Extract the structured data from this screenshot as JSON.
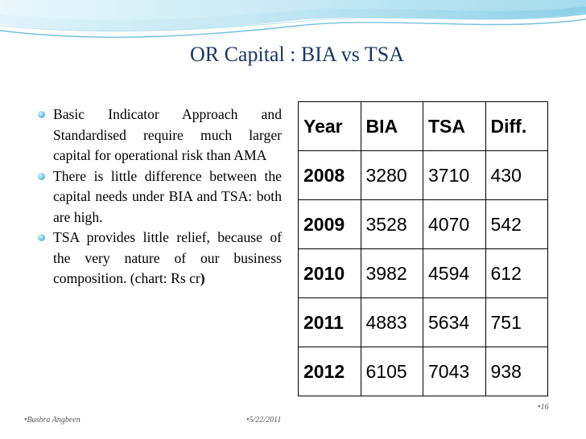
{
  "slide": {
    "title": "OR Capital : BIA vs TSA",
    "bullets": [
      {
        "text": "Basic Indicator Approach and Standardised require much larger capital for operational risk than AMA",
        "tail": ""
      },
      {
        "text": "There is little difference between the capital needs under  BIA and TSA: both are high.",
        "tail": ""
      },
      {
        "text": "TSA provides little relief, because of the very nature of our business composition. (chart: Rs cr",
        "tail": ")"
      }
    ]
  },
  "table": {
    "headers": [
      "Year",
      "BIA",
      "TSA",
      "Diff."
    ],
    "rows": [
      [
        "2008",
        "3280",
        "3710",
        "430"
      ],
      [
        "2009",
        "3528",
        "4070",
        "542"
      ],
      [
        "2010",
        "3982",
        "4594",
        "612"
      ],
      [
        "2011",
        "4883",
        "5634",
        "751"
      ],
      [
        "2012",
        "6105",
        "7043",
        "938"
      ]
    ]
  },
  "footer": {
    "author": "•Bushra Angbeen",
    "date": "•5/22/2011",
    "page": "•16"
  },
  "colors": {
    "title": "#17375e",
    "wave_light": "#bfe6f2",
    "wave_dark": "#4fb3d6",
    "bullet": "#4fb3d6"
  }
}
